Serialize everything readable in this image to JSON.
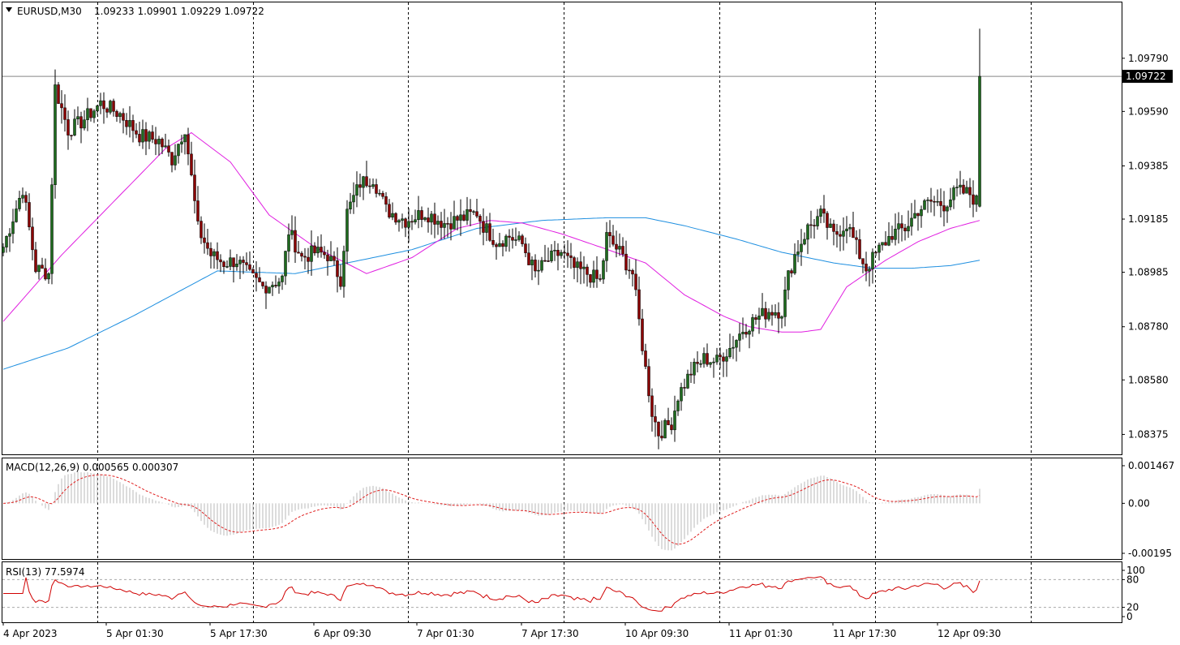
{
  "header": {
    "symbol_timeframe": "EURUSD,M30",
    "ohlc": "1.09233 1.09901 1.09229 1.09722"
  },
  "macd": {
    "label": "MACD(12,26,9) 0.000565 0.000307"
  },
  "rsi": {
    "label": "RSI(13) 77.5974"
  },
  "colors": {
    "bull": "#1e6b1e",
    "bear": "#8b0000",
    "ma_fast": "#e01ee0",
    "ma_slow": "#1e8fe0",
    "macd_signal": "#e02020",
    "rsi_line": "#d00000",
    "last_price_bg": "#000000"
  },
  "chart_data": [
    {
      "type": "candlestick",
      "title": "EURUSD,M30",
      "x_tick_labels": [
        "4 Apr 2023",
        "5 Apr 01:30",
        "5 Apr 17:30",
        "6 Apr 09:30",
        "7 Apr 01:30",
        "7 Apr 17:30",
        "10 Apr 09:30",
        "11 Apr 01:30",
        "11 Apr 17:30",
        "12 Apr 09:30"
      ],
      "y_tick_labels": [
        "1.09790",
        "1.09590",
        "1.09385",
        "1.09185",
        "1.08985",
        "1.08780",
        "1.08580",
        "1.08375"
      ],
      "ylim": [
        1.083,
        1.1
      ],
      "last_price": "1.09722",
      "last_candle": {
        "open": 1.09233,
        "high": 1.09901,
        "low": 1.09229,
        "close": 1.09722
      },
      "anchors": [
        [
          0,
          1.0908
        ],
        [
          6,
          1.093
        ],
        [
          10,
          1.09
        ],
        [
          14,
          1.0898
        ],
        [
          16,
          1.0968
        ],
        [
          20,
          1.0952
        ],
        [
          24,
          1.0955
        ],
        [
          30,
          1.0962
        ],
        [
          36,
          1.0958
        ],
        [
          42,
          1.095
        ],
        [
          48,
          1.0948
        ],
        [
          52,
          1.0941
        ],
        [
          56,
          1.0953
        ],
        [
          60,
          1.0915
        ],
        [
          64,
          1.0905
        ],
        [
          68,
          1.0902
        ],
        [
          72,
          1.0903
        ],
        [
          76,
          1.0897
        ],
        [
          80,
          1.0893
        ],
        [
          86,
          1.0896
        ],
        [
          88,
          1.0914
        ],
        [
          92,
          1.0904
        ],
        [
          96,
          1.0906
        ],
        [
          100,
          1.0905
        ],
        [
          104,
          1.0896
        ],
        [
          106,
          1.0921
        ],
        [
          110,
          1.0932
        ],
        [
          114,
          1.0934
        ],
        [
          118,
          1.0922
        ],
        [
          124,
          1.0918
        ],
        [
          130,
          1.0921
        ],
        [
          136,
          1.0917
        ],
        [
          142,
          1.0919
        ],
        [
          146,
          1.0921
        ],
        [
          148,
          1.0916
        ],
        [
          152,
          1.091
        ],
        [
          156,
          1.0912
        ],
        [
          160,
          1.0909
        ],
        [
          164,
          1.0898
        ],
        [
          168,
          1.0903
        ],
        [
          172,
          1.0906
        ],
        [
          176,
          1.09
        ],
        [
          180,
          1.0898
        ],
        [
          184,
          1.0895
        ],
        [
          186,
          1.0912
        ],
        [
          190,
          1.0906
        ],
        [
          194,
          1.0898
        ],
        [
          198,
          1.0862
        ],
        [
          200,
          1.0846
        ],
        [
          202,
          1.0838
        ],
        [
          206,
          1.0842
        ],
        [
          208,
          1.0852
        ],
        [
          212,
          1.0861
        ],
        [
          216,
          1.0866
        ],
        [
          220,
          1.0865
        ],
        [
          224,
          1.087
        ],
        [
          228,
          1.0877
        ],
        [
          232,
          1.0881
        ],
        [
          236,
          1.0884
        ],
        [
          240,
          1.0884
        ],
        [
          242,
          1.0897
        ],
        [
          244,
          1.0905
        ],
        [
          248,
          1.0915
        ],
        [
          252,
          1.092
        ],
        [
          256,
          1.0912
        ],
        [
          260,
          1.0917
        ],
        [
          264,
          1.0905
        ],
        [
          266,
          1.09
        ],
        [
          270,
          1.0907
        ],
        [
          274,
          1.0913
        ],
        [
          278,
          1.0915
        ],
        [
          282,
          1.0922
        ],
        [
          286,
          1.0925
        ],
        [
          290,
          1.0924
        ],
        [
          294,
          1.0929
        ],
        [
          298,
          1.0928
        ],
        [
          300,
          1.0925
        ],
        [
          301,
          1.0972
        ]
      ],
      "ma_fast": [
        [
          0,
          1.088
        ],
        [
          18,
          1.0905
        ],
        [
          30,
          1.092
        ],
        [
          50,
          1.0945
        ],
        [
          58,
          1.0951
        ],
        [
          70,
          1.094
        ],
        [
          82,
          1.092
        ],
        [
          96,
          1.0908
        ],
        [
          112,
          1.0898
        ],
        [
          126,
          1.0904
        ],
        [
          140,
          1.0915
        ],
        [
          150,
          1.0918
        ],
        [
          160,
          1.0917
        ],
        [
          172,
          1.0913
        ],
        [
          184,
          1.0908
        ],
        [
          198,
          1.0902
        ],
        [
          210,
          1.089
        ],
        [
          222,
          1.0882
        ],
        [
          230,
          1.0878
        ],
        [
          240,
          1.0876
        ],
        [
          246,
          1.0876
        ],
        [
          252,
          1.0877
        ],
        [
          260,
          1.0893
        ],
        [
          272,
          1.0903
        ],
        [
          282,
          1.091
        ],
        [
          292,
          1.0915
        ],
        [
          298,
          1.0917
        ],
        [
          301,
          1.0918
        ]
      ],
      "ma_slow": [
        [
          0,
          1.0862
        ],
        [
          20,
          1.087
        ],
        [
          40,
          1.0882
        ],
        [
          66,
          1.0899
        ],
        [
          90,
          1.0898
        ],
        [
          106,
          1.0902
        ],
        [
          126,
          1.0907
        ],
        [
          146,
          1.0915
        ],
        [
          166,
          1.0918
        ],
        [
          186,
          1.0919
        ],
        [
          198,
          1.0919
        ],
        [
          210,
          1.0916
        ],
        [
          226,
          1.0911
        ],
        [
          240,
          1.0906
        ],
        [
          256,
          1.0902
        ],
        [
          268,
          1.09
        ],
        [
          280,
          1.09
        ],
        [
          292,
          1.0901
        ],
        [
          301,
          1.0903
        ]
      ]
    },
    {
      "type": "bar",
      "title": "MACD(12,26,9)",
      "y_tick_labels": [
        "0.001467",
        "0.00",
        "-0.00195"
      ],
      "ylim": [
        -0.00195,
        0.001467
      ],
      "main_value": 0.000565,
      "signal_value": 0.000307
    },
    {
      "type": "line",
      "title": "RSI(13)",
      "y_tick_labels": [
        "100",
        "80",
        "20",
        "0"
      ],
      "ylim": [
        0,
        100
      ],
      "levels": [
        80,
        20
      ],
      "last_value": 77.5974
    }
  ]
}
